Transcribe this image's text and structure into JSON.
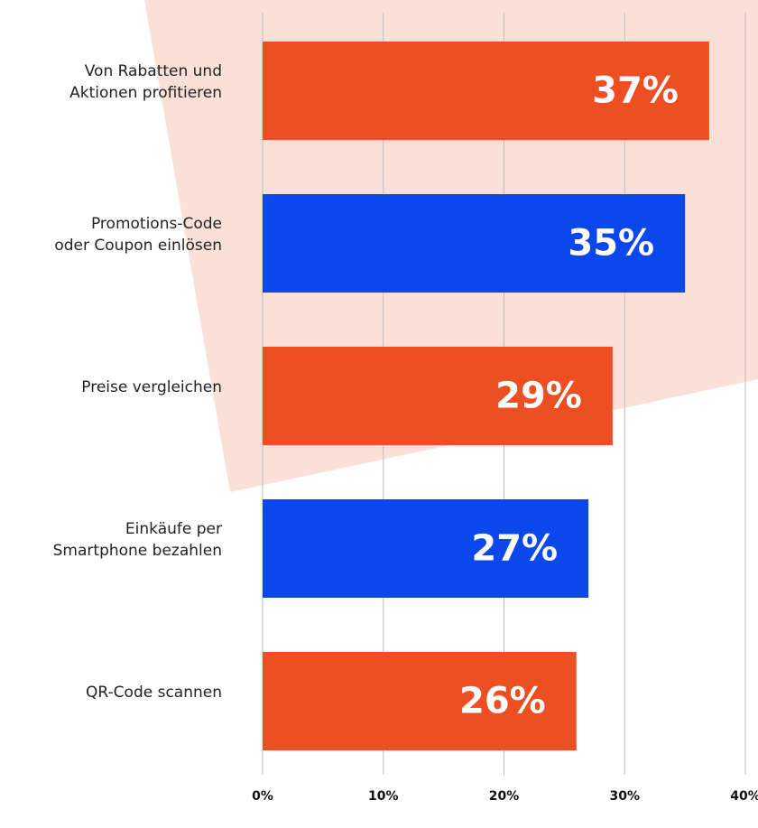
{
  "chart_data": {
    "type": "bar",
    "orientation": "horizontal",
    "categories": [
      "Von Rabatten und\nAktionen profitieren",
      "Promotions-Code\noder Coupon einlösen",
      "Preise vergleichen",
      "Einkäufe per\nSmartphone bezahlen",
      "QR-Code scannen"
    ],
    "values": [
      37,
      35,
      29,
      27,
      26
    ],
    "value_labels": [
      "37%",
      "35%",
      "29%",
      "27%",
      "26%"
    ],
    "colors": [
      "#ee4f22",
      "#0a47ed",
      "#ee4f22",
      "#0a47ed",
      "#ee4f22"
    ],
    "xlim": [
      0,
      40
    ],
    "xticks": [
      {
        "value": 0,
        "label": "0%"
      },
      {
        "value": 10,
        "label": "10%"
      },
      {
        "value": 20,
        "label": "20%"
      },
      {
        "value": 30,
        "label": "30%"
      },
      {
        "value": 40,
        "label": "40%"
      }
    ],
    "grid": true
  }
}
